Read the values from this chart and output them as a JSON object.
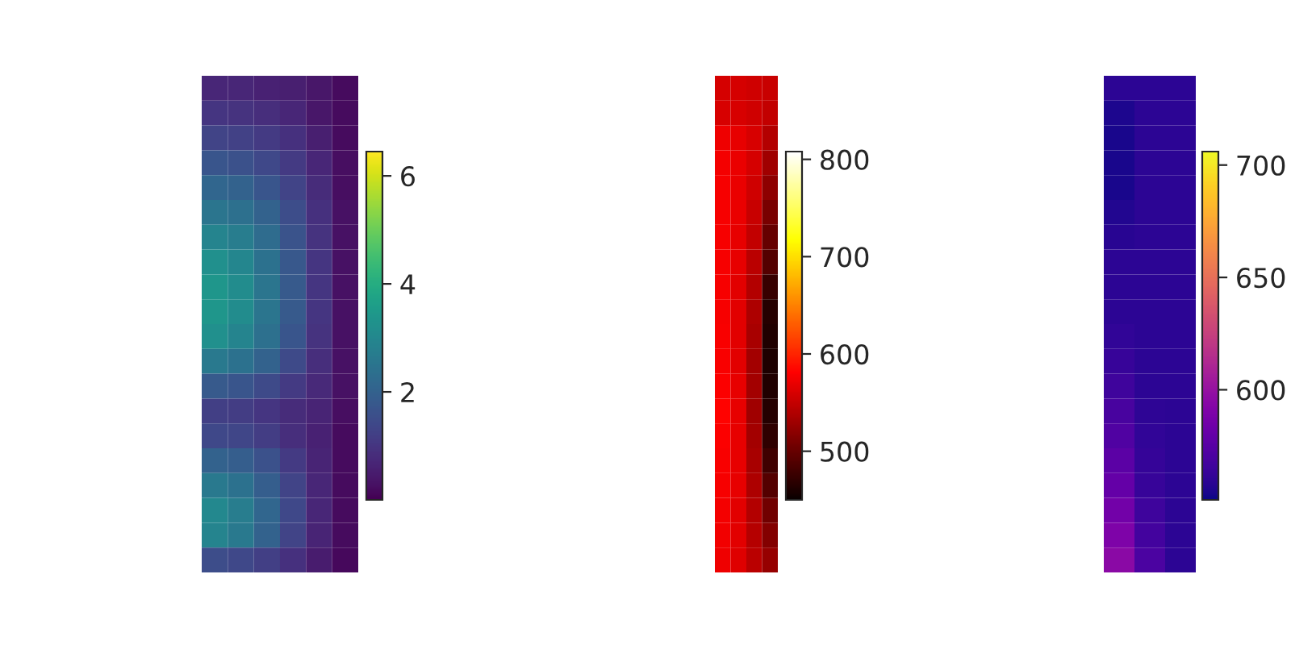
{
  "chart_data": [
    {
      "type": "heatmap",
      "categories": [
        null,
        null,
        null,
        null,
        null,
        null
      ],
      "y_categories": [
        null,
        null,
        null,
        null,
        null,
        null,
        null,
        null,
        null,
        null,
        null,
        null,
        null,
        null,
        null,
        null,
        null,
        null,
        null,
        null
      ],
      "tick_labels": false,
      "clim": [
        0,
        6.45
      ],
      "cticks": [
        2,
        4,
        6
      ],
      "cells": [
        [
          0.7,
          0.7,
          0.6,
          0.55,
          0.4,
          0.2
        ],
        [
          1.0,
          0.95,
          0.85,
          0.7,
          0.4,
          0.2
        ],
        [
          1.3,
          1.25,
          1.1,
          0.9,
          0.55,
          0.2
        ],
        [
          1.7,
          1.6,
          1.4,
          1.1,
          0.7,
          0.25
        ],
        [
          2.1,
          2.0,
          1.7,
          1.3,
          0.8,
          0.25
        ],
        [
          2.5,
          2.35,
          2.0,
          1.5,
          0.9,
          0.3
        ],
        [
          2.9,
          2.7,
          2.25,
          1.65,
          0.95,
          0.3
        ],
        [
          3.2,
          2.95,
          2.4,
          1.75,
          1.0,
          0.3
        ],
        [
          3.4,
          3.1,
          2.5,
          1.8,
          1.0,
          0.3
        ],
        [
          3.4,
          3.1,
          2.5,
          1.8,
          1.0,
          0.3
        ],
        [
          3.2,
          2.9,
          2.35,
          1.7,
          0.95,
          0.3
        ],
        [
          2.6,
          2.4,
          2.0,
          1.45,
          0.85,
          0.3
        ],
        [
          1.8,
          1.7,
          1.45,
          1.1,
          0.75,
          0.3
        ],
        [
          1.2,
          1.15,
          1.0,
          0.8,
          0.65,
          0.25
        ],
        [
          1.4,
          1.35,
          1.15,
          0.85,
          0.6,
          0.2
        ],
        [
          2.0,
          1.9,
          1.6,
          1.1,
          0.65,
          0.2
        ],
        [
          2.6,
          2.4,
          1.9,
          1.3,
          0.7,
          0.2
        ],
        [
          3.0,
          2.7,
          2.1,
          1.4,
          0.7,
          0.2
        ],
        [
          2.9,
          2.6,
          2.0,
          1.3,
          0.65,
          0.2
        ],
        [
          1.5,
          1.4,
          1.2,
          0.9,
          0.5,
          0.15
        ]
      ]
    },
    {
      "type": "heatmap",
      "categories": [
        null,
        null,
        null,
        null
      ],
      "y_categories": [
        null,
        null,
        null,
        null,
        null,
        null,
        null,
        null,
        null,
        null,
        null,
        null,
        null,
        null,
        null,
        null,
        null,
        null,
        null,
        null
      ],
      "tick_labels": false,
      "clim": [
        450,
        808
      ],
      "cticks": [
        500,
        600,
        700,
        800
      ],
      "cells": [
        [
          558,
          558,
          556,
          552
        ],
        [
          560,
          560,
          556,
          548
        ],
        [
          572,
          568,
          560,
          540
        ],
        [
          575,
          570,
          558,
          530
        ],
        [
          576,
          570,
          555,
          520
        ],
        [
          576,
          570,
          552,
          510
        ],
        [
          576,
          568,
          548,
          500
        ],
        [
          576,
          568,
          545,
          490
        ],
        [
          576,
          566,
          540,
          475
        ],
        [
          576,
          566,
          538,
          465
        ],
        [
          578,
          566,
          535,
          462
        ],
        [
          578,
          566,
          532,
          460
        ],
        [
          580,
          568,
          532,
          462
        ],
        [
          582,
          568,
          530,
          465
        ],
        [
          580,
          568,
          532,
          470
        ],
        [
          578,
          568,
          535,
          478
        ],
        [
          576,
          568,
          538,
          490
        ],
        [
          575,
          566,
          540,
          505
        ],
        [
          574,
          565,
          542,
          515
        ],
        [
          573,
          564,
          545,
          525
        ]
      ]
    },
    {
      "type": "heatmap",
      "categories": [
        null,
        null,
        null
      ],
      "y_categories": [
        null,
        null,
        null,
        null,
        null,
        null,
        null,
        null,
        null,
        null,
        null,
        null,
        null,
        null,
        null,
        null,
        null,
        null,
        null,
        null
      ],
      "tick_labels": false,
      "clim": [
        551,
        706
      ],
      "cticks": [
        600,
        650,
        700
      ],
      "cells": [
        [
          559,
          559,
          559
        ],
        [
          555,
          559,
          559
        ],
        [
          554,
          559,
          559
        ],
        [
          554,
          559,
          559
        ],
        [
          554,
          559,
          559
        ],
        [
          556,
          559,
          559
        ],
        [
          558,
          559,
          559
        ],
        [
          559,
          559,
          559
        ],
        [
          559,
          559,
          559
        ],
        [
          559,
          559,
          559
        ],
        [
          561,
          559,
          559
        ],
        [
          563,
          559,
          559
        ],
        [
          566,
          559,
          559
        ],
        [
          569,
          560,
          559
        ],
        [
          572,
          561,
          559
        ],
        [
          576,
          562,
          559
        ],
        [
          580,
          563,
          559
        ],
        [
          585,
          565,
          559
        ],
        [
          590,
          567,
          559
        ],
        [
          595,
          570,
          559
        ]
      ]
    }
  ]
}
